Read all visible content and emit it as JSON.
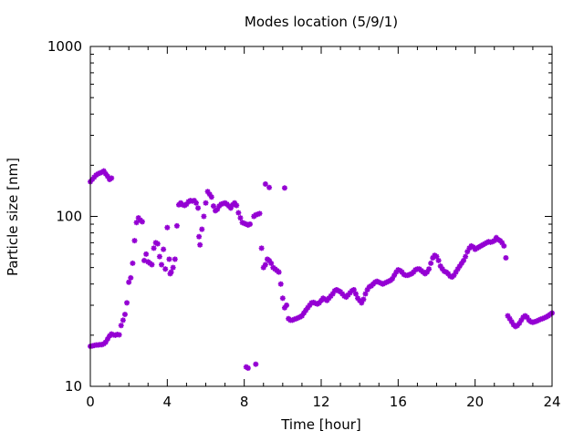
{
  "chart_data": {
    "type": "scatter",
    "title": "Modes location (5/9/1)",
    "xlabel": "Time [hour]",
    "ylabel": "Particle size [nm]",
    "xlim": [
      0,
      24
    ],
    "ylim": [
      10,
      1000
    ],
    "y_scale": "log",
    "x_ticks": [
      0,
      4,
      8,
      12,
      16,
      20,
      24
    ],
    "y_ticks": [
      10,
      100,
      1000
    ],
    "grid": false,
    "legend": "none",
    "marker_color": "#9400D3",
    "series": [
      {
        "points": [
          [
            0.0,
            17.2
          ],
          [
            0.1,
            17.3
          ],
          [
            0.2,
            17.4
          ],
          [
            0.3,
            17.5
          ],
          [
            0.4,
            17.5
          ],
          [
            0.5,
            17.6
          ],
          [
            0.6,
            17.6
          ],
          [
            0.7,
            17.8
          ],
          [
            0.8,
            18.2
          ],
          [
            0.9,
            19.0
          ],
          [
            1.0,
            19.8
          ],
          [
            1.1,
            20.3
          ],
          [
            1.2,
            20.1
          ],
          [
            1.3,
            20.0
          ],
          [
            1.4,
            20.2
          ],
          [
            1.5,
            20.1
          ],
          [
            1.6,
            22.8
          ],
          [
            1.7,
            24.5
          ],
          [
            1.8,
            26.5
          ],
          [
            1.9,
            31.0
          ],
          [
            2.0,
            41.0
          ],
          [
            2.1,
            43.5
          ],
          [
            2.2,
            53.0
          ],
          [
            2.3,
            72.0
          ],
          [
            2.4,
            92.0
          ],
          [
            2.5,
            98.0
          ],
          [
            2.6,
            95.0
          ],
          [
            2.7,
            93.0
          ],
          [
            2.8,
            55.0
          ],
          [
            2.9,
            60.0
          ],
          [
            3.0,
            54.0
          ],
          [
            3.1,
            53.0
          ],
          [
            3.2,
            52.0
          ],
          [
            3.3,
            65.0
          ],
          [
            3.4,
            70.0
          ],
          [
            3.5,
            69.0
          ],
          [
            3.6,
            58.0
          ],
          [
            3.7,
            52.0
          ],
          [
            3.8,
            64.0
          ],
          [
            3.9,
            49.0
          ],
          [
            4.0,
            86.0
          ],
          [
            4.1,
            56.0
          ],
          [
            4.15,
            46.0
          ],
          [
            4.2,
            47.0
          ],
          [
            4.3,
            50.0
          ],
          [
            4.4,
            56.0
          ],
          [
            4.5,
            88.0
          ],
          [
            4.6,
            117.0
          ],
          [
            4.7,
            120.0
          ],
          [
            4.8,
            117.0
          ],
          [
            4.9,
            116.0
          ],
          [
            5.0,
            118.0
          ],
          [
            5.1,
            122.0
          ],
          [
            5.2,
            124.0
          ],
          [
            5.3,
            123.0
          ],
          [
            5.4,
            124.0
          ],
          [
            5.5,
            120.0
          ],
          [
            5.6,
            112.0
          ],
          [
            5.65,
            76.0
          ],
          [
            5.7,
            68.0
          ],
          [
            5.8,
            84.0
          ],
          [
            5.9,
            100.0
          ],
          [
            6.0,
            120.0
          ],
          [
            6.1,
            140.0
          ],
          [
            6.2,
            135.0
          ],
          [
            6.3,
            130.0
          ],
          [
            6.4,
            115.0
          ],
          [
            6.5,
            108.0
          ],
          [
            6.6,
            110.0
          ],
          [
            6.7,
            115.0
          ],
          [
            6.8,
            118.0
          ],
          [
            6.9,
            119.0
          ],
          [
            7.0,
            120.0
          ],
          [
            7.1,
            118.0
          ],
          [
            7.2,
            115.0
          ],
          [
            7.3,
            112.0
          ],
          [
            7.4,
            117.0
          ],
          [
            7.5,
            120.0
          ],
          [
            7.6,
            116.0
          ],
          [
            7.7,
            105.0
          ],
          [
            7.8,
            98.0
          ],
          [
            7.9,
            92.0
          ],
          [
            8.0,
            91.0
          ],
          [
            8.1,
            90.0
          ],
          [
            8.2,
            89.0
          ],
          [
            8.3,
            90.0
          ],
          [
            8.1,
            13.0
          ],
          [
            8.2,
            12.8
          ],
          [
            8.6,
            13.5
          ],
          [
            8.5,
            100.0
          ],
          [
            8.6,
            102.0
          ],
          [
            8.7,
            103.0
          ],
          [
            8.8,
            104.0
          ],
          [
            8.9,
            65.0
          ],
          [
            9.0,
            50.0
          ],
          [
            9.1,
            52.0
          ],
          [
            9.2,
            56.0
          ],
          [
            9.3,
            55.0
          ],
          [
            9.4,
            53.0
          ],
          [
            9.5,
            50.0
          ],
          [
            9.6,
            49.0
          ],
          [
            9.7,
            48.0
          ],
          [
            9.8,
            47.0
          ],
          [
            9.9,
            40.0
          ],
          [
            10.0,
            33.0
          ],
          [
            10.1,
            29.0
          ],
          [
            10.2,
            30.0
          ],
          [
            10.3,
            25.0
          ],
          [
            10.4,
            24.5
          ],
          [
            10.5,
            24.5
          ],
          [
            10.6,
            24.8
          ],
          [
            10.7,
            25.0
          ],
          [
            10.8,
            25.3
          ],
          [
            10.9,
            25.6
          ],
          [
            11.0,
            26.0
          ],
          [
            11.1,
            27.0
          ],
          [
            11.2,
            28.0
          ],
          [
            11.3,
            29.0
          ],
          [
            11.4,
            30.0
          ],
          [
            11.5,
            31.0
          ],
          [
            11.6,
            31.2
          ],
          [
            11.7,
            30.8
          ],
          [
            11.8,
            30.5
          ],
          [
            11.9,
            31.0
          ],
          [
            12.0,
            32.0
          ],
          [
            12.1,
            33.0
          ],
          [
            12.2,
            32.5
          ],
          [
            12.3,
            32.0
          ],
          [
            12.4,
            33.0
          ],
          [
            12.5,
            34.0
          ],
          [
            12.6,
            35.0
          ],
          [
            12.7,
            36.5
          ],
          [
            12.8,
            37.0
          ],
          [
            12.9,
            36.5
          ],
          [
            13.0,
            36.0
          ],
          [
            13.1,
            35.0
          ],
          [
            13.2,
            34.0
          ],
          [
            13.3,
            33.5
          ],
          [
            13.4,
            34.5
          ],
          [
            13.5,
            35.5
          ],
          [
            13.6,
            36.5
          ],
          [
            13.7,
            37.0
          ],
          [
            13.8,
            35.0
          ],
          [
            13.9,
            33.0
          ],
          [
            14.0,
            32.0
          ],
          [
            14.1,
            31.0
          ],
          [
            14.2,
            32.5
          ],
          [
            14.3,
            35.0
          ],
          [
            14.4,
            37.0
          ],
          [
            14.5,
            38.5
          ],
          [
            14.6,
            39.0
          ],
          [
            14.7,
            40.0
          ],
          [
            14.8,
            41.0
          ],
          [
            14.9,
            41.5
          ],
          [
            15.0,
            41.0
          ],
          [
            15.1,
            40.5
          ],
          [
            15.2,
            40.0
          ],
          [
            15.3,
            40.5
          ],
          [
            15.4,
            41.0
          ],
          [
            15.5,
            41.5
          ],
          [
            15.6,
            42.0
          ],
          [
            15.7,
            43.0
          ],
          [
            15.8,
            45.0
          ],
          [
            15.9,
            47.0
          ],
          [
            16.0,
            48.5
          ],
          [
            16.1,
            48.0
          ],
          [
            16.2,
            47.0
          ],
          [
            16.3,
            45.5
          ],
          [
            16.4,
            45.0
          ],
          [
            16.5,
            45.0
          ],
          [
            16.6,
            45.5
          ],
          [
            16.7,
            46.0
          ],
          [
            16.8,
            47.0
          ],
          [
            16.9,
            48.5
          ],
          [
            17.0,
            49.0
          ],
          [
            17.1,
            49.0
          ],
          [
            17.2,
            48.0
          ],
          [
            17.3,
            47.0
          ],
          [
            17.4,
            46.0
          ],
          [
            17.5,
            47.0
          ],
          [
            17.6,
            49.0
          ],
          [
            17.7,
            53.0
          ],
          [
            17.8,
            57.0
          ],
          [
            17.9,
            59.0
          ],
          [
            18.0,
            58.0
          ],
          [
            18.1,
            55.0
          ],
          [
            18.2,
            51.0
          ],
          [
            18.3,
            49.0
          ],
          [
            18.4,
            47.5
          ],
          [
            18.5,
            47.0
          ],
          [
            18.6,
            46.0
          ],
          [
            18.7,
            44.5
          ],
          [
            18.8,
            44.0
          ],
          [
            18.9,
            45.0
          ],
          [
            19.0,
            47.0
          ],
          [
            19.1,
            49.0
          ],
          [
            19.2,
            51.0
          ],
          [
            19.3,
            53.0
          ],
          [
            19.4,
            55.0
          ],
          [
            19.5,
            58.0
          ],
          [
            19.6,
            62.0
          ],
          [
            19.7,
            65.0
          ],
          [
            19.8,
            67.0
          ],
          [
            19.9,
            66.0
          ],
          [
            20.0,
            64.0
          ],
          [
            20.1,
            65.0
          ],
          [
            20.2,
            66.0
          ],
          [
            20.3,
            67.0
          ],
          [
            20.4,
            68.0
          ],
          [
            20.5,
            69.0
          ],
          [
            20.6,
            70.0
          ],
          [
            20.7,
            71.0
          ],
          [
            20.8,
            70.5
          ],
          [
            20.9,
            71.0
          ],
          [
            21.0,
            72.0
          ],
          [
            21.1,
            75.0
          ],
          [
            21.2,
            73.0
          ],
          [
            21.3,
            72.0
          ],
          [
            21.4,
            70.0
          ],
          [
            21.5,
            67.0
          ],
          [
            21.6,
            57.0
          ],
          [
            21.7,
            26.0
          ],
          [
            21.8,
            25.0
          ],
          [
            21.9,
            24.0
          ],
          [
            22.0,
            23.0
          ],
          [
            22.1,
            22.5
          ],
          [
            22.2,
            22.8
          ],
          [
            22.3,
            23.5
          ],
          [
            22.4,
            24.5
          ],
          [
            22.5,
            25.5
          ],
          [
            22.6,
            26.0
          ],
          [
            22.7,
            25.5
          ],
          [
            22.8,
            24.5
          ],
          [
            22.9,
            24.0
          ],
          [
            23.0,
            23.8
          ],
          [
            23.1,
            24.0
          ],
          [
            23.2,
            24.2
          ],
          [
            23.3,
            24.5
          ],
          [
            23.4,
            24.8
          ],
          [
            23.5,
            25.0
          ],
          [
            23.6,
            25.3
          ],
          [
            23.7,
            25.6
          ],
          [
            23.8,
            26.0
          ],
          [
            23.9,
            26.5
          ],
          [
            24.0,
            27.0
          ],
          [
            0.0,
            160.0
          ],
          [
            0.1,
            165.0
          ],
          [
            0.2,
            170.0
          ],
          [
            0.3,
            175.0
          ],
          [
            0.4,
            178.0
          ],
          [
            0.5,
            180.0
          ],
          [
            0.6,
            182.0
          ],
          [
            0.7,
            185.0
          ],
          [
            0.8,
            178.0
          ],
          [
            0.9,
            172.0
          ],
          [
            1.0,
            165.0
          ],
          [
            1.1,
            168.0
          ],
          [
            9.1,
            155.0
          ],
          [
            9.3,
            148.0
          ],
          [
            10.1,
            147.0
          ]
        ]
      }
    ]
  }
}
